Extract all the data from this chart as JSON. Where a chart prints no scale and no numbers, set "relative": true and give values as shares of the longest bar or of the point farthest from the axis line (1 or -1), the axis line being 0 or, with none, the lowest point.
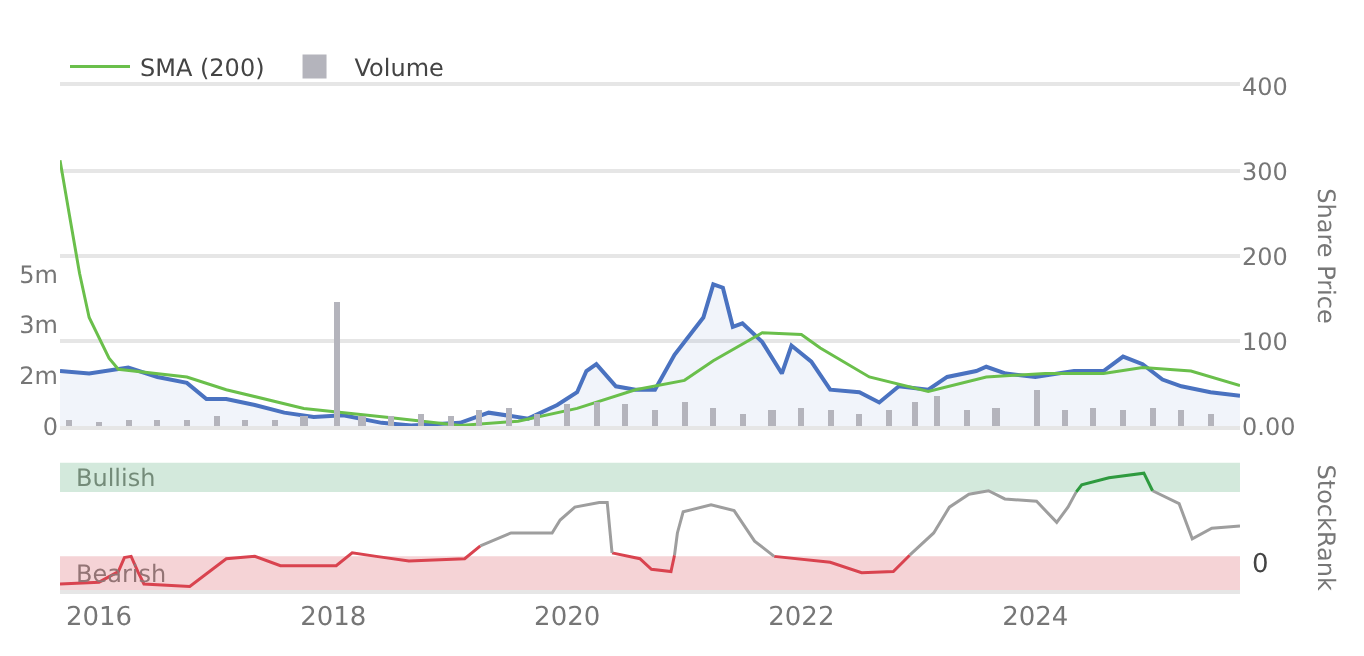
{
  "chart_data": [
    {
      "type": "area",
      "ylabel": "Share Price",
      "xlim": [
        "2015-09-01",
        "2025-10-01"
      ],
      "ylim": [
        0,
        400
      ],
      "yticks": [
        {
          "value": 0,
          "label": "0.00"
        },
        100,
        200,
        300,
        400
      ],
      "y2lim": [
        0,
        11.2
      ],
      "y2ticks": [
        {
          "value": 0,
          "label": "0"
        },
        {
          "value": 1.667,
          "label": "2m"
        },
        {
          "value": 3.333,
          "label": "3m"
        },
        {
          "value": 5,
          "label": "5m"
        }
      ],
      "tick_labels": "y",
      "grid": "y",
      "legend": "top left",
      "series": [
        {
          "type": "area",
          "color": "#4a72c0",
          "x": [
            "2015-09-01",
            "2015-12-01",
            "2016-04-01",
            "2016-07-01",
            "2016-10-01",
            "2016-12-01",
            "2017-02-01",
            "2017-05-01",
            "2017-08-01",
            "2017-11-01",
            "2018-02-01",
            "2018-06-01",
            "2018-09-01",
            "2019-02-01",
            "2019-05-01",
            "2019-09-01",
            "2019-12-01",
            "2020-02-01",
            "2020-03-01",
            "2020-04-01",
            "2020-06-01",
            "2020-08-01",
            "2020-10-01",
            "2020-12-01",
            "2021-03-01",
            "2021-04-01",
            "2021-05-01",
            "2021-06-01",
            "2021-07-01",
            "2021-09-01",
            "2021-11-01",
            "2021-12-01",
            "2022-02-01",
            "2022-04-01",
            "2022-07-01",
            "2022-09-01",
            "2022-11-01",
            "2023-02-01",
            "2023-04-01",
            "2023-07-01",
            "2023-08-01",
            "2023-10-01",
            "2024-01-01",
            "2024-05-01",
            "2024-08-01",
            "2024-10-01",
            "2024-12-01",
            "2025-02-01",
            "2025-04-01",
            "2025-07-01",
            "2025-10-01"
          ],
          "values": [
            65,
            62,
            69,
            58,
            51,
            32,
            32,
            25,
            16,
            11,
            13,
            4,
            1,
            4,
            16,
            9,
            25,
            40,
            65,
            73,
            47,
            43,
            43,
            84,
            128,
            167,
            163,
            117,
            121,
            99,
            62,
            95,
            76,
            43,
            40,
            28,
            47,
            43,
            58,
            65,
            70,
            62,
            58,
            65,
            65,
            82,
            73,
            55,
            47,
            40,
            36
          ]
        },
        {
          "type": "line",
          "name": "SMA (200)",
          "color": "#6abf4b",
          "x": [
            "2015-09-01",
            "2015-10-01",
            "2015-11-01",
            "2015-12-01",
            "2016-02-01",
            "2016-03-01",
            "2016-10-01",
            "2017-02-01",
            "2017-10-01",
            "2018-07-01",
            "2019-02-01",
            "2019-08-01",
            "2020-02-01",
            "2020-08-01",
            "2021-01-01",
            "2021-04-01",
            "2021-09-01",
            "2022-01-01",
            "2022-03-01",
            "2022-08-01",
            "2023-02-01",
            "2023-08-01",
            "2024-02-01",
            "2024-08-01",
            "2024-12-01",
            "2025-05-01",
            "2025-10-01"
          ],
          "values": [
            313,
            247,
            180,
            128,
            80,
            67,
            58,
            43,
            21,
            10,
            1,
            6,
            21,
            43,
            54,
            77,
            110,
            108,
            92,
            58,
            41,
            58,
            62,
            62,
            69,
            65,
            48
          ]
        },
        {
          "type": "bar",
          "name": "Volume",
          "axis": "y2",
          "color": "#b4b4bc",
          "x": [
            "2015-10-01",
            "2016-01-01",
            "2016-04-01",
            "2016-07-01",
            "2016-10-01",
            "2017-01-01",
            "2017-04-01",
            "2017-07-01",
            "2017-10-01",
            "2018-01-15",
            "2018-04-01",
            "2018-07-01",
            "2018-10-01",
            "2019-01-01",
            "2019-04-01",
            "2019-07-01",
            "2019-10-01",
            "2020-01-01",
            "2020-04-01",
            "2020-07-01",
            "2020-10-01",
            "2021-01-01",
            "2021-04-01",
            "2021-07-01",
            "2021-10-01",
            "2022-01-01",
            "2022-04-01",
            "2022-07-01",
            "2022-10-01",
            "2022-12-20",
            "2023-03-01",
            "2023-06-01",
            "2023-09-01",
            "2024-01-05",
            "2024-04-01",
            "2024-07-01",
            "2024-10-01",
            "2025-01-01",
            "2025-04-01",
            "2025-07-01"
          ],
          "values": [
            0.2,
            0.1,
            0.2,
            0.2,
            0.2,
            0.3,
            0.2,
            0.2,
            0.3,
            4.1,
            0.3,
            0.3,
            0.4,
            0.3,
            0.5,
            0.6,
            0.4,
            0.7,
            0.8,
            0.7,
            0.5,
            0.8,
            0.6,
            0.4,
            0.5,
            0.6,
            0.5,
            0.4,
            0.5,
            0.8,
            1.0,
            0.5,
            0.6,
            1.2,
            0.5,
            0.6,
            0.5,
            0.6,
            0.5,
            0.4
          ]
        }
      ]
    },
    {
      "type": "line",
      "relative": true,
      "ylabel": "StockRank",
      "xlim": [
        "2015-09-01",
        "2025-10-01"
      ],
      "xticks": [
        "2016",
        "2018",
        "2020",
        "2022",
        "2024"
      ],
      "tick_labels": "x",
      "annotations": [
        "0"
      ],
      "bands": [
        {
          "axis": "y",
          "from": 0.84,
          "to": 1.09,
          "label": "Bullish",
          "color": "#d3e9dc"
        },
        {
          "axis": "y",
          "from": 0,
          "to": 0.29,
          "label": "Bearish",
          "color": "#f5d3d6"
        }
      ],
      "series": [
        {
          "color": "#d9434f",
          "x": [
            "2015-09-01",
            "2016-01-01",
            "2016-03-01",
            "2016-03-20",
            "2016-04-10",
            "2016-05-01",
            "2016-05-20",
            "2016-10-10",
            "2017-02-01",
            "2017-05-01",
            "2017-07-20",
            "2018-01-10",
            "2018-03-01",
            "2018-05-15",
            "2018-08-25",
            "2019-02-15",
            "2019-04-05",
            "2019-04-06",
            "2020-05-19",
            "2020-05-20",
            "2020-08-15",
            "2020-09-20",
            "2020-11-20",
            "2020-12-01",
            "2020-12-02",
            "2021-10-07",
            "2021-10-08",
            "2022-04-01",
            "2022-07-08",
            "2022-10-15",
            "2022-12-05"
          ],
          "values": [
            0.055,
            0.07,
            0.16,
            0.28,
            0.29,
            0.16,
            0.055,
            0.033,
            0.27,
            0.29,
            0.21,
            0.21,
            0.32,
            0.29,
            0.25,
            0.27,
            0.38,
            null,
            null,
            0.32,
            0.27,
            0.18,
            0.16,
            0.3,
            null,
            null,
            0.29,
            0.24,
            0.15,
            0.16,
            0.3
          ]
        },
        {
          "color": "#9e9e9e",
          "x": [
            "2019-04-05",
            "2019-07-10",
            "2019-11-15",
            "2019-12-10",
            "2020-01-25",
            "2020-04-10",
            "2020-05-05",
            "2020-05-20",
            "2020-05-21",
            "2020-11-30",
            "2020-12-01",
            "2020-12-10",
            "2020-12-28",
            "2021-03-25",
            "2021-06-05",
            "2021-08-08",
            "2021-10-08",
            "2021-10-09",
            "2022-12-04",
            "2022-12-05",
            "2023-02-18",
            "2023-04-08",
            "2023-06-08",
            "2023-08-08",
            "2023-09-28",
            "2024-01-05",
            "2024-03-08",
            "2024-04-12",
            "2024-05-08",
            "2024-05-09",
            "2024-12-31",
            "2025-01-01",
            "2025-03-25",
            "2025-05-05",
            "2025-07-05",
            "2025-10-01"
          ],
          "values": [
            0.38,
            0.49,
            0.49,
            0.6,
            0.71,
            0.75,
            0.75,
            0.32,
            null,
            null,
            0.3,
            0.49,
            0.67,
            0.73,
            0.68,
            0.42,
            0.29,
            null,
            null,
            0.3,
            0.49,
            0.71,
            0.82,
            0.85,
            0.78,
            0.76,
            0.58,
            0.71,
            0.84,
            null,
            null,
            0.85,
            0.74,
            0.44,
            0.53,
            0.55
          ]
        },
        {
          "color": "#2e9a3f",
          "x": [
            "2024-05-08",
            "2024-05-25",
            "2024-08-18",
            "2024-12-05",
            "2025-01-01"
          ],
          "values": [
            0.84,
            0.9,
            0.96,
            1.0,
            0.85
          ]
        }
      ]
    }
  ]
}
